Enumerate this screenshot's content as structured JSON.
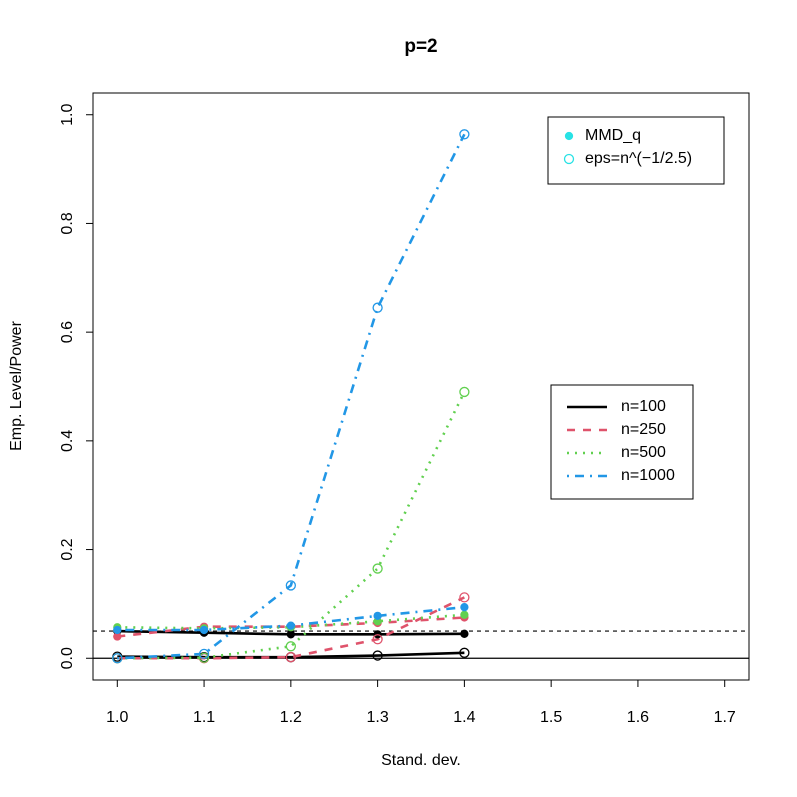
{
  "chart_data": {
    "type": "line",
    "title": "p=2",
    "x_label": "Stand. dev.",
    "y_label": "Emp. Level/Power",
    "x": [
      1.0,
      1.1,
      1.2,
      1.3,
      1.4
    ],
    "xlim": [
      0.972,
      1.728
    ],
    "xticks": [
      {
        "value": 1.0,
        "label": "1.0"
      },
      {
        "value": 1.1,
        "label": "1.1"
      },
      {
        "value": 1.2,
        "label": "1.2"
      },
      {
        "value": 1.3,
        "label": "1.3"
      },
      {
        "value": 1.4,
        "label": "1.4"
      },
      {
        "value": 1.5,
        "label": "1.5"
      },
      {
        "value": 1.6,
        "label": "1.6"
      },
      {
        "value": 1.7,
        "label": "1.7"
      }
    ],
    "ylim": [
      -0.04,
      1.04
    ],
    "yticks": [
      {
        "value": 0,
        "label": "0.0"
      },
      {
        "value": 0.2,
        "label": "0.2"
      },
      {
        "value": 0.4,
        "label": "0.4"
      },
      {
        "value": 0.6,
        "label": "0.6"
      },
      {
        "value": 0.8,
        "label": "0.8"
      },
      {
        "value": 1.0,
        "label": "1.0"
      }
    ],
    "hlines": [
      {
        "value": 0,
        "dash": "solid"
      },
      {
        "value": 0.05,
        "dash": "dashed"
      }
    ],
    "series": [
      {
        "color": "#000000",
        "dash": "solid",
        "marker": "filled",
        "values": [
          0.05,
          0.047,
          0.044,
          0.044,
          0.045
        ]
      },
      {
        "color": "#000000",
        "dash": "solid",
        "marker": "open",
        "values": [
          0.003,
          0.002,
          0.002,
          0.005,
          0.01
        ]
      },
      {
        "color": "#DF536B",
        "dash": "dashed",
        "marker": "filled",
        "values": [
          0.04,
          0.058,
          0.058,
          0.065,
          0.075
        ]
      },
      {
        "color": "#DF536B",
        "dash": "dashed",
        "marker": "open",
        "values": [
          0.0,
          0.0,
          0.002,
          0.035,
          0.112
        ]
      },
      {
        "color": "#61D04F",
        "dash": "dotted",
        "marker": "filled",
        "values": [
          0.057,
          0.055,
          0.057,
          0.068,
          0.08
        ]
      },
      {
        "color": "#61D04F",
        "dash": "dotted",
        "marker": "open",
        "values": [
          0.0,
          0.001,
          0.022,
          0.165,
          0.49
        ]
      },
      {
        "color": "#2297E6",
        "dash": "dotdash",
        "marker": "filled",
        "values": [
          0.052,
          0.052,
          0.06,
          0.078,
          0.094
        ]
      },
      {
        "color": "#2297E6",
        "dash": "dotdash",
        "marker": "open",
        "values": [
          0.0,
          0.008,
          0.134,
          0.645,
          0.964
        ]
      }
    ],
    "legends": [
      {
        "kind": "marker",
        "color": "#28E2E5",
        "entries": [
          {
            "label": "MMD_q",
            "marker": "filled"
          },
          {
            "label": "eps=n^(−1/2.5)",
            "marker": "open"
          }
        ]
      },
      {
        "kind": "line",
        "entries": [
          {
            "label": "n=100",
            "color": "#000000",
            "dash": "solid"
          },
          {
            "label": "n=250",
            "color": "#DF536B",
            "dash": "dashed"
          },
          {
            "label": "n=500",
            "color": "#61D04F",
            "dash": "dotted"
          },
          {
            "label": "n=1000",
            "color": "#2297E6",
            "dash": "dotdash"
          }
        ]
      }
    ]
  }
}
